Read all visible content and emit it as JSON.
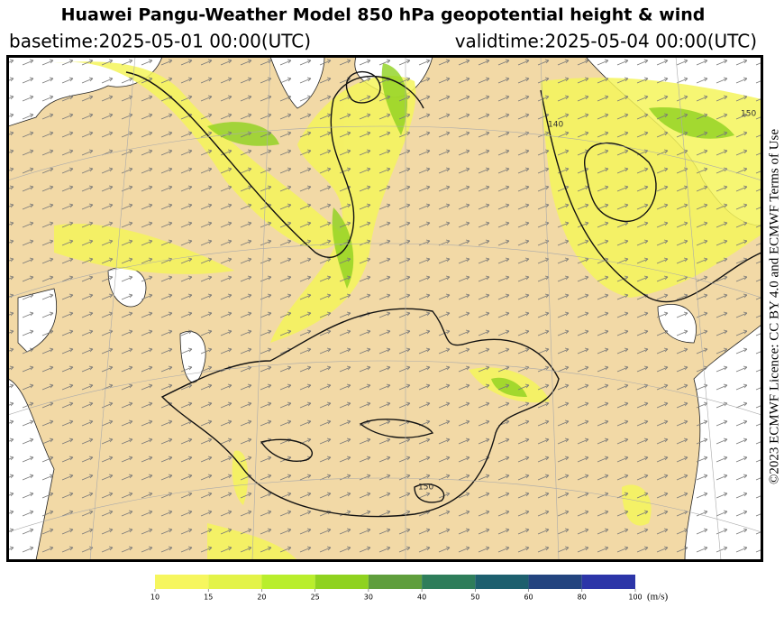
{
  "header": {
    "title": "Huawei Pangu-Weather Model 850 hPa geopotential height & wind",
    "basetime": "basetime:2025-05-01 00:00(UTC)",
    "validtime": "validtime:2025-05-04 00:00(UTC)"
  },
  "map": {
    "contour_labels": [
      140,
      150,
      150
    ]
  },
  "licence": "©2023 ECMWF Licence: CC BY 4.0 and ECMWF Terms of Use",
  "colorbar": {
    "ticks": [
      10,
      15,
      20,
      25,
      30,
      40,
      50,
      60,
      80,
      100
    ],
    "colors": [
      "#f6f65e",
      "#e3f348",
      "#b9ee2c",
      "#8fd21f",
      "#5f9e3c",
      "#2e7d5a",
      "#1d5f6e",
      "#23447f",
      "#2c35a8"
    ],
    "unit": "(m/s)"
  }
}
